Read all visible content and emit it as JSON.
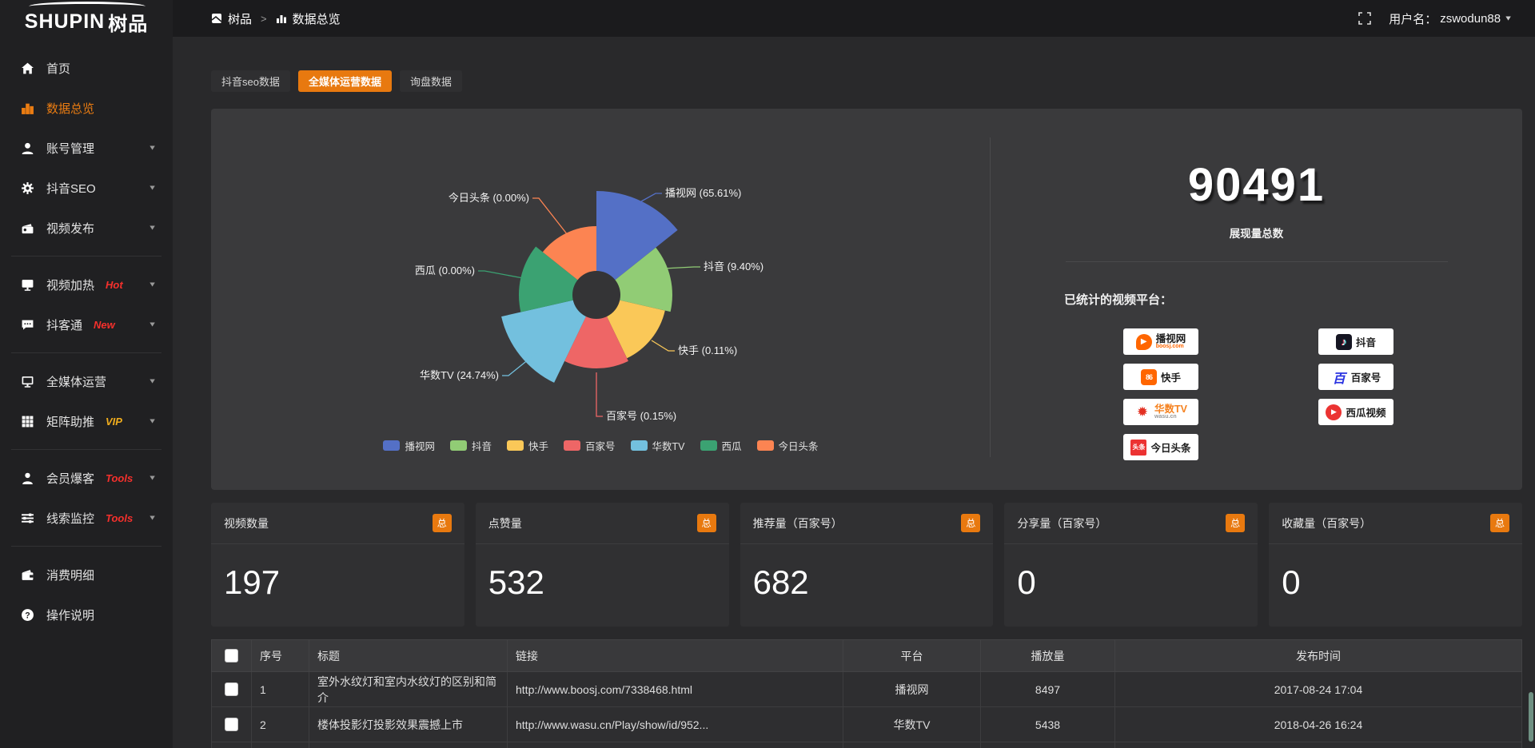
{
  "topbar": {
    "logo": "SHUPIN",
    "logo_cn": "树品",
    "breadcrumb": [
      "树品",
      "数据总览"
    ],
    "user_label": "用户名：",
    "username": "zswodun88"
  },
  "sidebar": {
    "items": [
      {
        "icon": "home-icon",
        "label": "首页"
      },
      {
        "icon": "bar-chart-icon",
        "label": "数据总览",
        "active": true
      },
      {
        "icon": "user-icon",
        "label": "账号管理",
        "chevron": true
      },
      {
        "icon": "gear-icon",
        "label": "抖音SEO",
        "chevron": true
      },
      {
        "icon": "video-icon",
        "label": "视频发布",
        "chevron": true
      },
      {
        "divider": true
      },
      {
        "icon": "screen-hot-icon",
        "label": "视频加热",
        "badge": "Hot",
        "badge_style": "red",
        "chevron": true
      },
      {
        "icon": "chat-icon",
        "label": "抖客通",
        "badge": "New",
        "badge_style": "red",
        "chevron": true
      },
      {
        "divider": true
      },
      {
        "icon": "monitor-icon",
        "label": "全媒体运营",
        "chevron": true
      },
      {
        "icon": "grid-icon",
        "label": "矩阵助推",
        "badge": "VIP",
        "badge_style": "yellow",
        "chevron": true
      },
      {
        "divider": true
      },
      {
        "icon": "person-icon",
        "label": "会员爆客",
        "badge": "Tools",
        "badge_style": "red",
        "chevron": true
      },
      {
        "icon": "sliders-icon",
        "label": "线索监控",
        "badge": "Tools",
        "badge_style": "red",
        "chevron": true
      },
      {
        "divider": true
      },
      {
        "icon": "wallet-icon",
        "label": "消费明细"
      },
      {
        "icon": "question-icon",
        "label": "操作说明"
      }
    ]
  },
  "tabs": [
    {
      "label": "抖音seo数据",
      "active": false
    },
    {
      "label": "全媒体运营数据",
      "active": true
    },
    {
      "label": "询盘数据",
      "active": false
    }
  ],
  "chart_data": {
    "type": "pie",
    "variant": "nightingale-rose",
    "categories": [
      "播视网",
      "抖音",
      "快手",
      "百家号",
      "华数TV",
      "西瓜",
      "今日头条"
    ],
    "values": [
      65.61,
      9.4,
      0.11,
      0.15,
      24.74,
      0.0,
      0.0
    ],
    "unit": "%",
    "labels": [
      "播视网 (65.61%)",
      "抖音 (9.40%)",
      "快手 (0.11%)",
      "百家号 (0.15%)",
      "华数TV (24.74%)",
      "西瓜 (0.00%)",
      "今日头条 (0.00%)"
    ],
    "colors": [
      "#5470c6",
      "#91cc75",
      "#fac858",
      "#ee6666",
      "#73c0de",
      "#3ba272",
      "#fc8452"
    ],
    "legend": [
      "播视网",
      "抖音",
      "快手",
      "百家号",
      "华数TV",
      "西瓜",
      "今日头条"
    ],
    "legend_position": "bottom"
  },
  "summary": {
    "total": "90491",
    "total_label": "展现量总数",
    "platforms_label": "已统计的视频平台：",
    "platform_columns": [
      [
        {
          "logo": "boosj",
          "name": "播视网",
          "sub": "boosj.com"
        },
        {
          "logo": "kuaishou",
          "name": "快手"
        },
        {
          "logo": "wasu",
          "name": "华数TV",
          "sub": "wasu.cn"
        },
        {
          "logo": "toutiao",
          "name": "今日头条",
          "logo_text": "头条"
        }
      ],
      [
        {
          "logo": "douyin",
          "name": "抖音"
        },
        {
          "logo": "baijiahao",
          "name": "百家号"
        },
        {
          "logo": "xigua",
          "name": "西瓜视频"
        }
      ]
    ]
  },
  "stat_cards": [
    {
      "title": "视频数量",
      "badge": "总",
      "value": "197"
    },
    {
      "title": "点赞量",
      "badge": "总",
      "value": "532"
    },
    {
      "title": "推荐量（百家号）",
      "badge": "总",
      "value": "682"
    },
    {
      "title": "分享量（百家号）",
      "badge": "总",
      "value": "0"
    },
    {
      "title": "收藏量（百家号）",
      "badge": "总",
      "value": "0"
    }
  ],
  "table": {
    "headers": [
      "序号",
      "标题",
      "链接",
      "平台",
      "播放量",
      "发布时间"
    ],
    "rows": [
      {
        "num": "1",
        "title": "室外水纹灯和室内水纹灯的区别和简介",
        "link": "http://www.boosj.com/7338468.html",
        "platform": "播视网",
        "plays": "8497",
        "time": "2017-08-24 17:04"
      },
      {
        "num": "2",
        "title": "楼体投影灯投影效果震撼上市",
        "link": "http://www.wasu.cn/Play/show/id/952...",
        "platform": "华数TV",
        "plays": "5438",
        "time": "2018-04-26 16:24"
      },
      {
        "num": "",
        "title": "",
        "link": "",
        "platform": "",
        "plays": "",
        "time": ""
      }
    ]
  }
}
